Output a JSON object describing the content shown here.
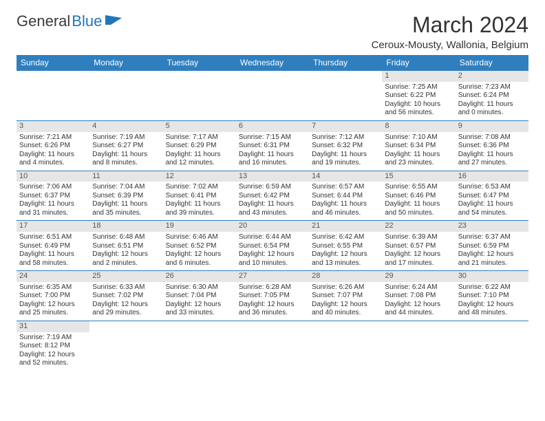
{
  "logo": {
    "word1": "General",
    "word2": "Blue"
  },
  "title": "March 2024",
  "subtitle": "Ceroux-Mousty, Wallonia, Belgium",
  "day_headers": [
    "Sunday",
    "Monday",
    "Tuesday",
    "Wednesday",
    "Thursday",
    "Friday",
    "Saturday"
  ],
  "colors": {
    "header_bg": "#2f7fbf",
    "header_fg": "#ffffff",
    "daynum_bg": "#e6e6e6",
    "border": "#2f7fbf",
    "logo_blue": "#2176b9"
  },
  "weeks": [
    [
      {
        "n": "",
        "rise": "",
        "set": "",
        "day": ""
      },
      {
        "n": "",
        "rise": "",
        "set": "",
        "day": ""
      },
      {
        "n": "",
        "rise": "",
        "set": "",
        "day": ""
      },
      {
        "n": "",
        "rise": "",
        "set": "",
        "day": ""
      },
      {
        "n": "",
        "rise": "",
        "set": "",
        "day": ""
      },
      {
        "n": "1",
        "rise": "Sunrise: 7:25 AM",
        "set": "Sunset: 6:22 PM",
        "day": "Daylight: 10 hours and 56 minutes."
      },
      {
        "n": "2",
        "rise": "Sunrise: 7:23 AM",
        "set": "Sunset: 6:24 PM",
        "day": "Daylight: 11 hours and 0 minutes."
      }
    ],
    [
      {
        "n": "3",
        "rise": "Sunrise: 7:21 AM",
        "set": "Sunset: 6:26 PM",
        "day": "Daylight: 11 hours and 4 minutes."
      },
      {
        "n": "4",
        "rise": "Sunrise: 7:19 AM",
        "set": "Sunset: 6:27 PM",
        "day": "Daylight: 11 hours and 8 minutes."
      },
      {
        "n": "5",
        "rise": "Sunrise: 7:17 AM",
        "set": "Sunset: 6:29 PM",
        "day": "Daylight: 11 hours and 12 minutes."
      },
      {
        "n": "6",
        "rise": "Sunrise: 7:15 AM",
        "set": "Sunset: 6:31 PM",
        "day": "Daylight: 11 hours and 16 minutes."
      },
      {
        "n": "7",
        "rise": "Sunrise: 7:12 AM",
        "set": "Sunset: 6:32 PM",
        "day": "Daylight: 11 hours and 19 minutes."
      },
      {
        "n": "8",
        "rise": "Sunrise: 7:10 AM",
        "set": "Sunset: 6:34 PM",
        "day": "Daylight: 11 hours and 23 minutes."
      },
      {
        "n": "9",
        "rise": "Sunrise: 7:08 AM",
        "set": "Sunset: 6:36 PM",
        "day": "Daylight: 11 hours and 27 minutes."
      }
    ],
    [
      {
        "n": "10",
        "rise": "Sunrise: 7:06 AM",
        "set": "Sunset: 6:37 PM",
        "day": "Daylight: 11 hours and 31 minutes."
      },
      {
        "n": "11",
        "rise": "Sunrise: 7:04 AM",
        "set": "Sunset: 6:39 PM",
        "day": "Daylight: 11 hours and 35 minutes."
      },
      {
        "n": "12",
        "rise": "Sunrise: 7:02 AM",
        "set": "Sunset: 6:41 PM",
        "day": "Daylight: 11 hours and 39 minutes."
      },
      {
        "n": "13",
        "rise": "Sunrise: 6:59 AM",
        "set": "Sunset: 6:42 PM",
        "day": "Daylight: 11 hours and 43 minutes."
      },
      {
        "n": "14",
        "rise": "Sunrise: 6:57 AM",
        "set": "Sunset: 6:44 PM",
        "day": "Daylight: 11 hours and 46 minutes."
      },
      {
        "n": "15",
        "rise": "Sunrise: 6:55 AM",
        "set": "Sunset: 6:46 PM",
        "day": "Daylight: 11 hours and 50 minutes."
      },
      {
        "n": "16",
        "rise": "Sunrise: 6:53 AM",
        "set": "Sunset: 6:47 PM",
        "day": "Daylight: 11 hours and 54 minutes."
      }
    ],
    [
      {
        "n": "17",
        "rise": "Sunrise: 6:51 AM",
        "set": "Sunset: 6:49 PM",
        "day": "Daylight: 11 hours and 58 minutes."
      },
      {
        "n": "18",
        "rise": "Sunrise: 6:48 AM",
        "set": "Sunset: 6:51 PM",
        "day": "Daylight: 12 hours and 2 minutes."
      },
      {
        "n": "19",
        "rise": "Sunrise: 6:46 AM",
        "set": "Sunset: 6:52 PM",
        "day": "Daylight: 12 hours and 6 minutes."
      },
      {
        "n": "20",
        "rise": "Sunrise: 6:44 AM",
        "set": "Sunset: 6:54 PM",
        "day": "Daylight: 12 hours and 10 minutes."
      },
      {
        "n": "21",
        "rise": "Sunrise: 6:42 AM",
        "set": "Sunset: 6:55 PM",
        "day": "Daylight: 12 hours and 13 minutes."
      },
      {
        "n": "22",
        "rise": "Sunrise: 6:39 AM",
        "set": "Sunset: 6:57 PM",
        "day": "Daylight: 12 hours and 17 minutes."
      },
      {
        "n": "23",
        "rise": "Sunrise: 6:37 AM",
        "set": "Sunset: 6:59 PM",
        "day": "Daylight: 12 hours and 21 minutes."
      }
    ],
    [
      {
        "n": "24",
        "rise": "Sunrise: 6:35 AM",
        "set": "Sunset: 7:00 PM",
        "day": "Daylight: 12 hours and 25 minutes."
      },
      {
        "n": "25",
        "rise": "Sunrise: 6:33 AM",
        "set": "Sunset: 7:02 PM",
        "day": "Daylight: 12 hours and 29 minutes."
      },
      {
        "n": "26",
        "rise": "Sunrise: 6:30 AM",
        "set": "Sunset: 7:04 PM",
        "day": "Daylight: 12 hours and 33 minutes."
      },
      {
        "n": "27",
        "rise": "Sunrise: 6:28 AM",
        "set": "Sunset: 7:05 PM",
        "day": "Daylight: 12 hours and 36 minutes."
      },
      {
        "n": "28",
        "rise": "Sunrise: 6:26 AM",
        "set": "Sunset: 7:07 PM",
        "day": "Daylight: 12 hours and 40 minutes."
      },
      {
        "n": "29",
        "rise": "Sunrise: 6:24 AM",
        "set": "Sunset: 7:08 PM",
        "day": "Daylight: 12 hours and 44 minutes."
      },
      {
        "n": "30",
        "rise": "Sunrise: 6:22 AM",
        "set": "Sunset: 7:10 PM",
        "day": "Daylight: 12 hours and 48 minutes."
      }
    ],
    [
      {
        "n": "31",
        "rise": "Sunrise: 7:19 AM",
        "set": "Sunset: 8:12 PM",
        "day": "Daylight: 12 hours and 52 minutes."
      },
      {
        "n": "",
        "rise": "",
        "set": "",
        "day": ""
      },
      {
        "n": "",
        "rise": "",
        "set": "",
        "day": ""
      },
      {
        "n": "",
        "rise": "",
        "set": "",
        "day": ""
      },
      {
        "n": "",
        "rise": "",
        "set": "",
        "day": ""
      },
      {
        "n": "",
        "rise": "",
        "set": "",
        "day": ""
      },
      {
        "n": "",
        "rise": "",
        "set": "",
        "day": ""
      }
    ]
  ]
}
